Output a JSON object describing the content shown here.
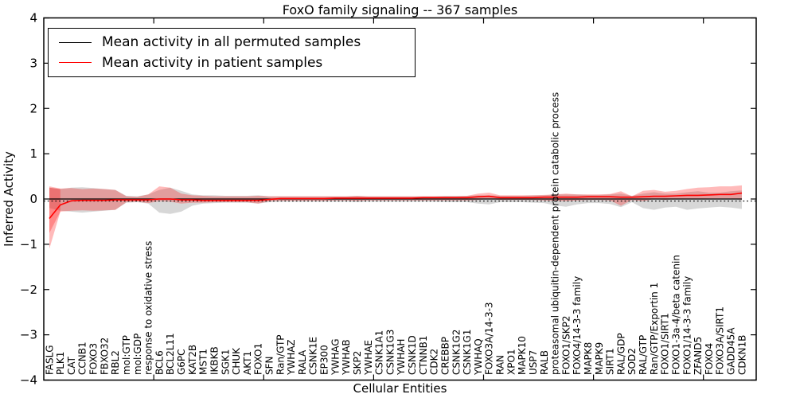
{
  "figure": {
    "title": "FoxO family signaling -- 367 samples",
    "xlabel": "Cellular Entities",
    "ylabel": "Inferred Activity"
  },
  "chart_data": {
    "type": "line",
    "title": "FoxO family signaling -- 367 samples",
    "xlabel": "Cellular Entities",
    "ylabel": "Inferred Activity",
    "ylim": [
      -4,
      4
    ],
    "yticks": [
      -4,
      -3,
      -2,
      -1,
      0,
      1,
      2,
      3,
      4
    ],
    "xtick_boundary_indices": [
      9,
      19,
      29,
      39,
      49,
      59
    ],
    "grid": false,
    "legend_position": "upper left",
    "categories": [
      "FASLG",
      "PLK1",
      "CAT",
      "CCNB1",
      "FOXO3",
      "FBXO32",
      "RBL2",
      "mol:GTP",
      "mol:GDP",
      "response to oxidative stress",
      "BCL6",
      "BCL2L11",
      "G6PC",
      "KAT2B",
      "MST1",
      "IKBKB",
      "SGK1",
      "CHUK",
      "AKT1",
      "FOXO1",
      "SFN",
      "Ran/GTP",
      "YWHAZ",
      "RALA",
      "CSNK1E",
      "EP300",
      "YWHAG",
      "YWHAB",
      "SKP2",
      "YWHAE",
      "CSNK1A1",
      "CSNK1G3",
      "YWHAH",
      "CSNK1D",
      "CTNNB1",
      "CDK2",
      "CREBBP",
      "CSNK1G2",
      "CSNK1G1",
      "YWHAQ",
      "FOXO3A/14-3-3",
      "RAN",
      "XPO1",
      "MAPK10",
      "USP7",
      "RALB",
      "proteasomal ubiquitin-dependent protein catabolic process",
      "FOXO1/SKP2",
      "FOXO4/14-3-3 family",
      "MAPK8",
      "MAPK9",
      "SIRT1",
      "RAL/GDP",
      "SOD2",
      "RAL/GTP",
      "Ran/GTP/Exportin 1",
      "FOXO1/SIRT1",
      "FOXO1-3a-4/beta catenin",
      "FOXO1/14-3-3 family",
      "ZFAND5",
      "FOXO4",
      "FOXO3A/SIRT1",
      "GADD45A",
      "CDKN1B"
    ],
    "series": [
      {
        "name": "Mean activity in all permuted samples",
        "color": "#000000",
        "linewidth": 1.3,
        "values": [
          0,
          0,
          0,
          0,
          0,
          0,
          0,
          0,
          0,
          0,
          0,
          0,
          0,
          0,
          0,
          0,
          0,
          0,
          0,
          0,
          0,
          0,
          0,
          0,
          0,
          0,
          0,
          0,
          0,
          0,
          0,
          0,
          0,
          0,
          0,
          0,
          0,
          0,
          0,
          0,
          0,
          0,
          0,
          0,
          0,
          0,
          0,
          0,
          0,
          0,
          0,
          0,
          0,
          0,
          0,
          0,
          0,
          0,
          0,
          0,
          0,
          0,
          0,
          0
        ]
      },
      {
        "name": "Mean activity in patient samples",
        "color": "#ff0000",
        "linewidth": 1.6,
        "values": [
          -0.43,
          -0.13,
          -0.04,
          -0.03,
          -0.03,
          -0.03,
          -0.02,
          -0.02,
          -0.02,
          -0.02,
          0.0,
          0.0,
          -0.02,
          -0.02,
          -0.03,
          -0.03,
          -0.03,
          -0.03,
          -0.03,
          -0.03,
          -0.01,
          0.01,
          0.01,
          0.01,
          0.01,
          0.01,
          0.02,
          0.02,
          0.02,
          0.02,
          0.02,
          0.02,
          0.02,
          0.02,
          0.03,
          0.03,
          0.03,
          0.03,
          0.03,
          0.05,
          0.06,
          0.03,
          0.03,
          0.03,
          0.03,
          0.04,
          0.04,
          0.04,
          0.04,
          0.05,
          0.05,
          0.05,
          0.04,
          0.04,
          0.05,
          0.06,
          0.06,
          0.07,
          0.08,
          0.08,
          0.09,
          0.1,
          0.1,
          0.13
        ]
      }
    ],
    "bands": [
      {
        "name": "permuted-samples-std-band",
        "color": "#a0a0a0",
        "opacity": 0.42,
        "start": 0,
        "lower": [
          -0.2,
          -0.26,
          -0.28,
          -0.3,
          -0.28,
          -0.26,
          -0.24,
          -0.08,
          -0.07,
          -0.1,
          -0.3,
          -0.33,
          -0.28,
          -0.15,
          -0.1,
          -0.09,
          -0.08,
          -0.08,
          -0.08,
          -0.1,
          -0.07,
          -0.06,
          -0.06,
          -0.06,
          -0.06,
          -0.06,
          -0.06,
          -0.06,
          -0.07,
          -0.06,
          -0.06,
          -0.06,
          -0.06,
          -0.06,
          -0.06,
          -0.06,
          -0.07,
          -0.07,
          -0.07,
          -0.1,
          -0.12,
          -0.07,
          -0.07,
          -0.07,
          -0.08,
          -0.09,
          -0.14,
          -0.17,
          -0.12,
          -0.09,
          -0.09,
          -0.11,
          -0.18,
          -0.07,
          -0.2,
          -0.24,
          -0.19,
          -0.17,
          -0.24,
          -0.21,
          -0.19,
          -0.17,
          -0.19,
          -0.22
        ],
        "upper": [
          0.25,
          0.22,
          0.25,
          0.26,
          0.24,
          0.22,
          0.2,
          0.07,
          0.06,
          0.1,
          0.2,
          0.25,
          0.18,
          0.1,
          0.08,
          0.08,
          0.07,
          0.07,
          0.07,
          0.08,
          0.06,
          0.06,
          0.06,
          0.06,
          0.06,
          0.06,
          0.06,
          0.06,
          0.07,
          0.06,
          0.06,
          0.06,
          0.06,
          0.06,
          0.06,
          0.06,
          0.07,
          0.07,
          0.07,
          0.08,
          0.08,
          0.07,
          0.07,
          0.07,
          0.08,
          0.08,
          0.1,
          0.1,
          0.1,
          0.09,
          0.09,
          0.1,
          0.12,
          0.07,
          0.12,
          0.15,
          0.12,
          0.12,
          0.15,
          0.17,
          0.14,
          0.14,
          0.17,
          0.19
        ]
      },
      {
        "name": "patient-samples-std-band",
        "color": "#ff0000",
        "opacity": 0.27,
        "start": 0,
        "lower": [
          -1.1,
          -0.28,
          -0.26,
          -0.25,
          -0.26,
          -0.25,
          -0.24,
          -0.07,
          -0.06,
          -0.09,
          -0.05,
          -0.06,
          -0.1,
          -0.08,
          -0.08,
          -0.07,
          -0.07,
          -0.07,
          -0.07,
          -0.1,
          -0.05,
          -0.04,
          -0.04,
          -0.04,
          -0.04,
          -0.04,
          -0.03,
          -0.03,
          -0.04,
          -0.03,
          -0.03,
          -0.03,
          -0.03,
          -0.03,
          -0.03,
          -0.03,
          -0.03,
          -0.03,
          -0.03,
          -0.02,
          0.0,
          -0.02,
          -0.02,
          -0.02,
          -0.02,
          -0.03,
          -0.04,
          -0.05,
          -0.03,
          -0.02,
          -0.02,
          -0.03,
          -0.15,
          -0.02,
          -0.05,
          0.0,
          -0.02,
          0.0,
          0.0,
          0.0,
          0.01,
          0.01,
          0.01,
          -0.02
        ],
        "upper": [
          0.28,
          0.23,
          0.24,
          0.22,
          0.23,
          0.22,
          0.2,
          0.06,
          0.05,
          0.1,
          0.28,
          0.25,
          0.12,
          0.08,
          0.07,
          0.06,
          0.06,
          0.06,
          0.06,
          0.07,
          0.06,
          0.06,
          0.06,
          0.06,
          0.06,
          0.06,
          0.06,
          0.06,
          0.07,
          0.06,
          0.06,
          0.06,
          0.06,
          0.06,
          0.06,
          0.06,
          0.06,
          0.06,
          0.07,
          0.12,
          0.14,
          0.08,
          0.08,
          0.08,
          0.08,
          0.09,
          0.1,
          0.12,
          0.1,
          0.1,
          0.1,
          0.11,
          0.17,
          0.06,
          0.18,
          0.2,
          0.16,
          0.18,
          0.22,
          0.25,
          0.26,
          0.28,
          0.28,
          0.3
        ]
      },
      {
        "name": "patient-samples-band-left-overlap",
        "color": "#ff0000",
        "opacity": 0.27,
        "start": 0,
        "lower": [
          -0.75,
          -0.28
        ],
        "upper": [
          0.25,
          0.22
        ]
      }
    ],
    "zero_line": {
      "value": -0.045,
      "style": "dotted",
      "color": "#000000"
    }
  }
}
